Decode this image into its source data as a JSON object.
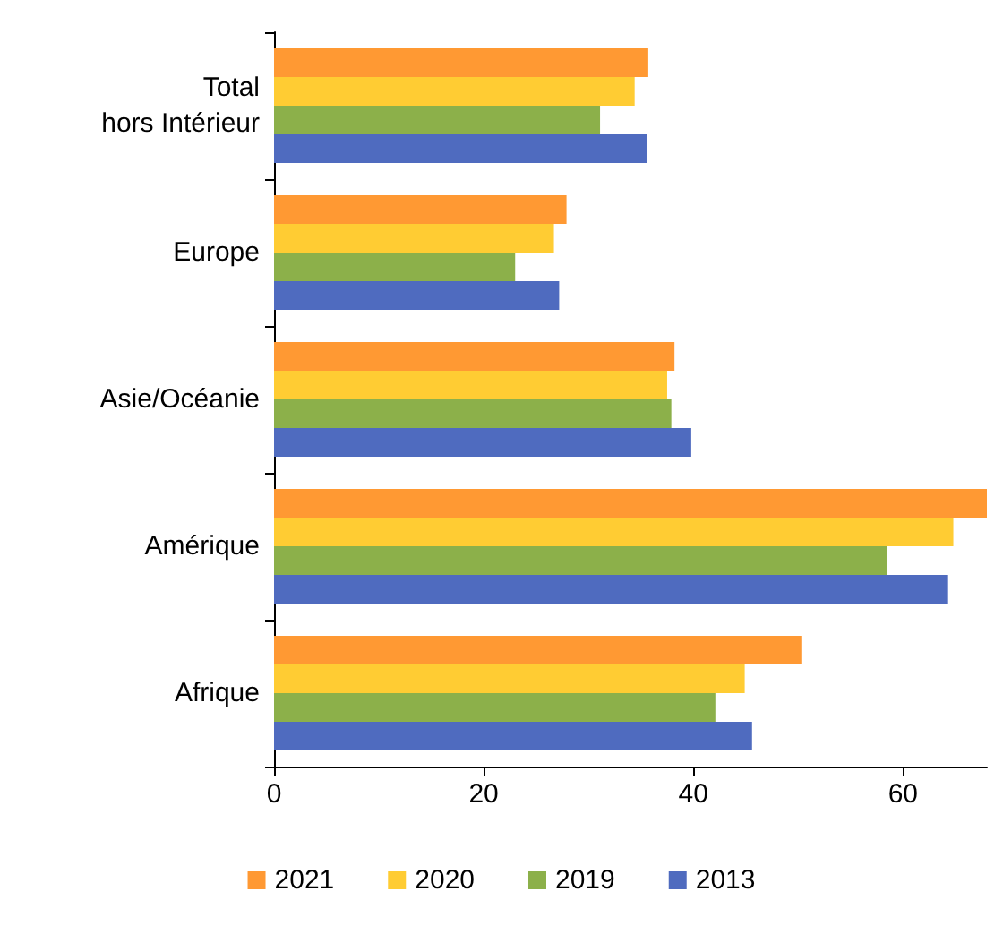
{
  "chart_data": {
    "type": "bar",
    "orientation": "horizontal",
    "categories": [
      "Total\nhors Intérieur",
      "Europe",
      "Asie/Océanie",
      "Amérique",
      "Afrique"
    ],
    "series": [
      {
        "name": "2021",
        "color": "#ff9933",
        "values": [
          35.7,
          27.9,
          38.2,
          68,
          50.3
        ]
      },
      {
        "name": "2020",
        "color": "#ffcc33",
        "values": [
          34.4,
          26.7,
          37.5,
          64.8,
          44.9
        ]
      },
      {
        "name": "2019",
        "color": "#8cb04a",
        "values": [
          31.1,
          23.0,
          37.9,
          58.5,
          42.1
        ]
      },
      {
        "name": "2013",
        "color": "#4f6bbf",
        "values": [
          35.6,
          27.2,
          39.8,
          64.3,
          45.6
        ]
      }
    ],
    "xlim": [
      0,
      68
    ],
    "xticks": [
      0,
      20,
      40,
      60
    ],
    "grid": false,
    "legend": "bottom"
  }
}
